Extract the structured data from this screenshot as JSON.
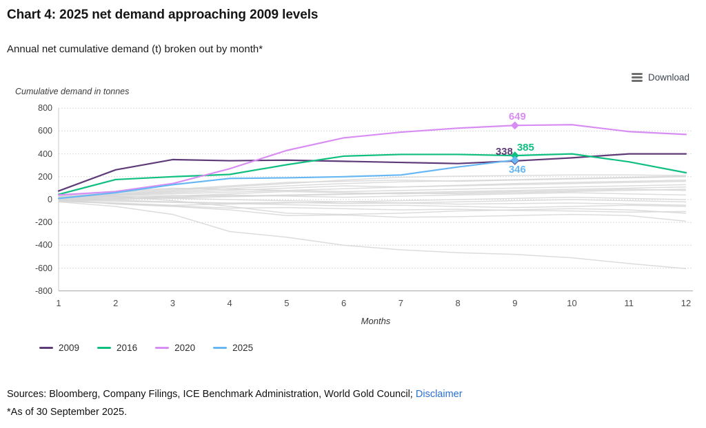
{
  "header": {
    "title": "Chart 4: 2025 net demand approaching 2009 levels",
    "subtitle": "Annual net cumulative demand (t) broken out by month*"
  },
  "toolbar": {
    "download_label": "Download"
  },
  "chart_data": {
    "type": "line",
    "axis_caption": "Cumulative demand in tonnes",
    "xlabel": "Months",
    "x": [
      1,
      2,
      3,
      4,
      5,
      6,
      7,
      8,
      9,
      10,
      11,
      12
    ],
    "ylim": [
      -800,
      800
    ],
    "yticks": [
      800,
      600,
      400,
      200,
      0,
      -200,
      -400,
      -600,
      -800
    ],
    "grid": "dotted-horizontal",
    "legend_position": "bottom-left",
    "series": [
      {
        "name": "2009",
        "color": "#5e3a78",
        "values": [
          75,
          260,
          350,
          340,
          345,
          335,
          325,
          315,
          338,
          365,
          400,
          400
        ],
        "end_label": {
          "month": 9,
          "value": 338,
          "placement": "left"
        }
      },
      {
        "name": "2016",
        "color": "#0fbf80",
        "values": [
          45,
          175,
          200,
          220,
          305,
          380,
          395,
          395,
          385,
          400,
          330,
          235
        ],
        "end_label": {
          "month": 9,
          "value": 385,
          "placement": "right"
        }
      },
      {
        "name": "2020",
        "color": "#d88df3",
        "values": [
          40,
          70,
          140,
          270,
          430,
          540,
          590,
          625,
          649,
          655,
          595,
          570
        ],
        "end_label": {
          "month": 9,
          "value": 649,
          "placement": "above"
        }
      },
      {
        "name": "2025",
        "color": "#66b7f4",
        "values": [
          10,
          60,
          130,
          185,
          190,
          200,
          215,
          285,
          346
        ],
        "end_label": {
          "month": 9,
          "value": 346,
          "placement": "below"
        }
      }
    ],
    "background_series": {
      "color": "#d6d6d6",
      "values": [
        [
          -20,
          -60,
          -130,
          -280,
          -330,
          -400,
          -440,
          -465,
          -480,
          -510,
          -560,
          -605
        ],
        [
          0,
          -40,
          -60,
          -90,
          -140,
          -135,
          -155,
          -150,
          -140,
          -130,
          -140,
          -190
        ],
        [
          10,
          30,
          -10,
          -60,
          -120,
          -130,
          -120,
          -100,
          -90,
          -80,
          -90,
          -120
        ],
        [
          30,
          60,
          90,
          120,
          150,
          160,
          170,
          160,
          170,
          180,
          190,
          200
        ],
        [
          20,
          40,
          60,
          80,
          100,
          120,
          110,
          120,
          130,
          140,
          150,
          160
        ],
        [
          -10,
          -30,
          -50,
          -40,
          -30,
          -20,
          -30,
          -20,
          -10,
          0,
          -10,
          -20
        ],
        [
          15,
          25,
          35,
          30,
          40,
          50,
          60,
          70,
          80,
          90,
          100,
          110
        ],
        [
          5,
          10,
          20,
          40,
          30,
          20,
          30,
          40,
          50,
          60,
          50,
          40
        ],
        [
          -5,
          -15,
          -25,
          -35,
          -45,
          -55,
          -50,
          -60,
          -70,
          -60,
          -50,
          -60
        ],
        [
          25,
          50,
          80,
          110,
          140,
          170,
          195,
          205,
          210,
          215,
          215,
          210
        ],
        [
          10,
          20,
          10,
          0,
          -10,
          -20,
          -10,
          0,
          10,
          20,
          10,
          0
        ],
        [
          -15,
          -35,
          -55,
          -75,
          -70,
          -80,
          -90,
          -85,
          -95,
          -100,
          -110,
          -105
        ],
        [
          35,
          70,
          100,
          90,
          80,
          70,
          80,
          90,
          100,
          110,
          120,
          130
        ],
        [
          0,
          10,
          30,
          50,
          70,
          60,
          50,
          60,
          70,
          80,
          90,
          80
        ],
        [
          20,
          35,
          50,
          65,
          80,
          95,
          110,
          125,
          140,
          150,
          160,
          170
        ],
        [
          -10,
          0,
          15,
          25,
          35,
          45,
          55,
          50,
          60,
          70,
          80,
          90
        ],
        [
          5,
          -5,
          -20,
          -30,
          -25,
          -35,
          -30,
          -40,
          -35,
          -30,
          -40,
          -50
        ],
        [
          15,
          45,
          70,
          95,
          120,
          140,
          155,
          165,
          175,
          185,
          195,
          205
        ]
      ]
    }
  },
  "footer": {
    "sources_text": "Sources: Bloomberg, Company Filings, ICE Benchmark Administration, World Gold Council; ",
    "disclaimer_label": "Disclaimer",
    "footnote": "*As of 30 September 2025."
  }
}
